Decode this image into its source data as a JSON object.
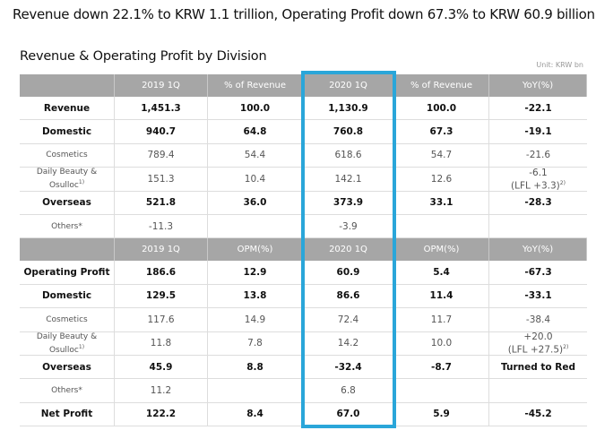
{
  "headline": "Revenue down 22.1% to KRW 1.1 trillion, Operating Profit down 67.3% to KRW 60.9 billion",
  "section": {
    "title": "Revenue & Operating Profit by Division",
    "unit": "Unit: KRW bn"
  },
  "table": {
    "rows": [
      [
        null,
        "2019 1Q",
        "% of Revenue",
        "2020 1Q",
        "% of Revenue",
        "YoY(%)"
      ],
      [
        "Revenue",
        "1,451.3",
        "100.0",
        "1,130.9",
        "100.0",
        "-22.1"
      ],
      [
        "Domestic",
        "940.7",
        "64.8",
        "760.8",
        "67.3",
        "-19.1"
      ],
      [
        "Cosmetics",
        "789.4",
        "54.4",
        "618.6",
        "54.7",
        "-21.6"
      ],
      [
        {
          "text": "Daily Beauty & Osulloc",
          "sup": "1)"
        },
        "151.3",
        "10.4",
        "142.1",
        "12.6",
        {
          "lines": [
            "-6.1",
            "(LFL +3.3)"
          ],
          "sup": "2)"
        }
      ],
      [
        "Overseas",
        "521.8",
        "36.0",
        "373.9",
        "33.1",
        "-28.3"
      ],
      [
        "Others*",
        "-11.3",
        null,
        "-3.9",
        null,
        null
      ],
      [
        null,
        "2019 1Q",
        "OPM(%)",
        "2020 1Q",
        "OPM(%)",
        "YoY(%)"
      ],
      [
        "Operating Profit",
        "186.6",
        "12.9",
        "60.9",
        "5.4",
        "-67.3"
      ],
      [
        "Domestic",
        "129.5",
        "13.8",
        "86.6",
        "11.4",
        "-33.1"
      ],
      [
        "Cosmetics",
        "117.6",
        "14.9",
        "72.4",
        "11.7",
        "-38.4"
      ],
      [
        {
          "text": "Daily Beauty & Osulloc",
          "sup": "1)"
        },
        "11.8",
        "7.8",
        "14.2",
        "10.0",
        {
          "lines": [
            "+20.0",
            "(LFL +27.5)"
          ],
          "sup": "2)"
        }
      ],
      [
        "Overseas",
        "45.9",
        "8.8",
        "-32.4",
        "-8.7",
        "Turned to Red"
      ],
      [
        "Others*",
        "11.2",
        null,
        "6.8",
        null,
        null
      ],
      [
        "Net Profit",
        "122.2",
        "8.4",
        "67.0",
        "5.9",
        "-45.2"
      ]
    ]
  }
}
